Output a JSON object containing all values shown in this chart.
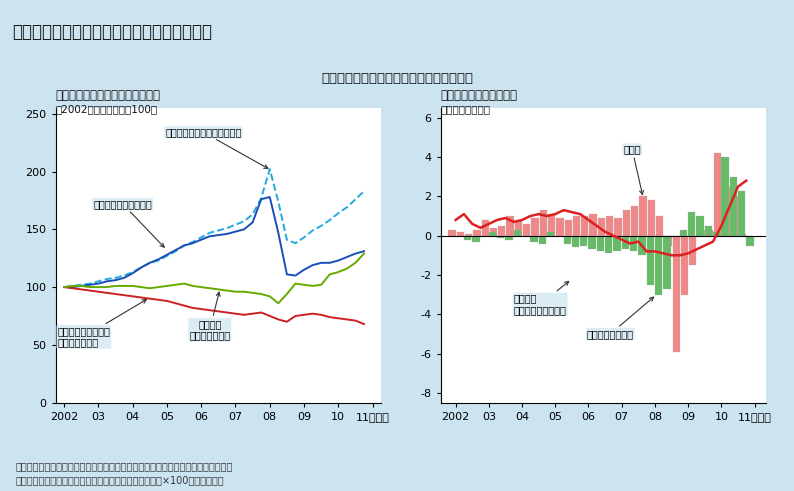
{
  "title_box": "第１－１－３図　交易条件の悪化と交易損失",
  "subtitle": "交易条件の悪化が貿易による所得増を減殺",
  "bg_color": "#cce4f0",
  "plot_bg": "#ffffff",
  "chart1_title": "（１）輸入物価と交易条件の動向",
  "chart1_ylabel": "（2002年第１四半期＝100）",
  "chart2_title": "（２）純輸出と交易損失",
  "chart2_ylabel": "（前年差、兆円）",
  "footer1": "（備考）　１．日本銀行「企業物価指数」、内閣府「国民経済計算」により作成。",
  "footer2": "　　　　　２．交易条件＝輸出物価指数／輸入物価指数×100として算出。",
  "c1_xtick_pos": [
    2002.25,
    2003.25,
    2004.25,
    2005.25,
    2006.25,
    2007.25,
    2008.25,
    2009.25,
    2010.25,
    2011.25
  ],
  "c1_xtick_lab": [
    "2002",
    "03",
    "04",
    "05",
    "06",
    "07",
    "08",
    "09",
    "10",
    "11（年）"
  ],
  "c1_yticks": [
    0,
    50,
    100,
    150,
    200,
    250
  ],
  "c1_ylim": [
    0,
    255
  ],
  "c1_xlim": [
    2002.0,
    2011.5
  ],
  "c2_xtick_pos": [
    2002.25,
    2003.25,
    2004.25,
    2005.25,
    2006.25,
    2007.25,
    2008.25,
    2009.25,
    2010.25,
    2011.25
  ],
  "c2_xtick_lab": [
    "2002",
    "03",
    "04",
    "05",
    "06",
    "07",
    "08",
    "09",
    "10",
    "11（年）"
  ],
  "c2_yticks": [
    -8,
    -6,
    -4,
    -2,
    0,
    2,
    4,
    6
  ],
  "c2_ylim": [
    -8.5,
    6.5
  ],
  "c2_xlim": [
    2001.8,
    2011.6
  ],
  "import_contract_color": "#22aadd",
  "import_yen_color": "#1a4eb8",
  "exchange_color": "#cc2020",
  "terms_color": "#66aa00",
  "net_export_color": "#f08888",
  "trade_adj_color": "#66bb66",
  "trade_gain_color": "#dd2020",
  "import_contract_x": [
    2002.25,
    2002.5,
    2002.75,
    2003.0,
    2003.25,
    2003.5,
    2003.75,
    2004.0,
    2004.25,
    2004.5,
    2004.75,
    2005.0,
    2005.25,
    2005.5,
    2005.75,
    2006.0,
    2006.25,
    2006.5,
    2006.75,
    2007.0,
    2007.25,
    2007.5,
    2007.75,
    2008.0,
    2008.25,
    2008.5,
    2008.75,
    2009.0,
    2009.25,
    2009.5,
    2009.75,
    2010.0,
    2010.25,
    2010.5,
    2010.75,
    2011.0
  ],
  "import_contract_y": [
    100,
    101,
    102,
    103,
    105,
    107,
    108,
    110,
    113,
    117,
    121,
    123,
    127,
    131,
    136,
    139,
    143,
    147,
    149,
    151,
    154,
    157,
    163,
    177,
    202,
    174,
    141,
    138,
    143,
    149,
    153,
    158,
    164,
    169,
    176,
    183
  ],
  "import_yen_x": [
    2002.25,
    2002.5,
    2002.75,
    2003.0,
    2003.25,
    2003.5,
    2003.75,
    2004.0,
    2004.25,
    2004.5,
    2004.75,
    2005.0,
    2005.25,
    2005.5,
    2005.75,
    2006.0,
    2006.25,
    2006.5,
    2006.75,
    2007.0,
    2007.25,
    2007.5,
    2007.75,
    2008.0,
    2008.25,
    2008.5,
    2008.75,
    2009.0,
    2009.25,
    2009.5,
    2009.75,
    2010.0,
    2010.25,
    2010.5,
    2010.75,
    2011.0
  ],
  "import_yen_y": [
    100,
    100,
    101,
    102,
    103,
    105,
    106,
    108,
    112,
    117,
    121,
    124,
    128,
    132,
    136,
    138,
    141,
    144,
    145,
    146,
    148,
    150,
    156,
    176,
    178,
    147,
    111,
    110,
    115,
    119,
    121,
    121,
    123,
    126,
    129,
    131
  ],
  "exchange_x": [
    2002.25,
    2002.5,
    2002.75,
    2003.0,
    2003.25,
    2003.5,
    2003.75,
    2004.0,
    2004.25,
    2004.5,
    2004.75,
    2005.0,
    2005.25,
    2005.5,
    2005.75,
    2006.0,
    2006.25,
    2006.5,
    2006.75,
    2007.0,
    2007.25,
    2007.5,
    2007.75,
    2008.0,
    2008.25,
    2008.5,
    2008.75,
    2009.0,
    2009.25,
    2009.5,
    2009.75,
    2010.0,
    2010.25,
    2010.5,
    2010.75,
    2011.0
  ],
  "exchange_y": [
    100,
    99,
    98,
    97,
    96,
    95,
    94,
    93,
    92,
    91,
    90,
    89,
    88,
    86,
    84,
    82,
    81,
    80,
    79,
    78,
    77,
    76,
    77,
    78,
    75,
    72,
    70,
    75,
    76,
    77,
    76,
    74,
    73,
    72,
    71,
    68
  ],
  "terms_x": [
    2002.25,
    2002.5,
    2002.75,
    2003.0,
    2003.25,
    2003.5,
    2003.75,
    2004.0,
    2004.25,
    2004.5,
    2004.75,
    2005.0,
    2005.25,
    2005.5,
    2005.75,
    2006.0,
    2006.25,
    2006.5,
    2006.75,
    2007.0,
    2007.25,
    2007.5,
    2007.75,
    2008.0,
    2008.25,
    2008.5,
    2008.75,
    2009.0,
    2009.25,
    2009.5,
    2009.75,
    2010.0,
    2010.25,
    2010.5,
    2010.75,
    2011.0
  ],
  "terms_y": [
    100,
    101,
    101,
    100,
    100,
    100,
    101,
    101,
    101,
    100,
    99,
    100,
    101,
    102,
    103,
    101,
    100,
    99,
    98,
    97,
    96,
    96,
    95,
    94,
    92,
    86,
    94,
    103,
    102,
    101,
    102,
    111,
    113,
    116,
    121,
    129
  ],
  "quarters": [
    2002.25,
    2002.5,
    2002.75,
    2003.0,
    2003.25,
    2003.5,
    2003.75,
    2004.0,
    2004.25,
    2004.5,
    2004.75,
    2005.0,
    2005.25,
    2005.5,
    2005.75,
    2006.0,
    2006.25,
    2006.5,
    2006.75,
    2007.0,
    2007.25,
    2007.5,
    2007.75,
    2008.0,
    2008.25,
    2008.5,
    2008.75,
    2009.0,
    2009.25,
    2009.5,
    2009.75,
    2010.0,
    2010.25,
    2010.5,
    2010.75,
    2011.0
  ],
  "net_export_vals": [
    0.3,
    0.2,
    0.1,
    0.3,
    0.8,
    0.4,
    0.5,
    1.0,
    0.8,
    0.6,
    0.9,
    1.3,
    1.1,
    0.9,
    0.8,
    1.0,
    1.0,
    1.1,
    0.9,
    1.0,
    0.9,
    1.3,
    1.5,
    2.0,
    1.8,
    1.0,
    -0.5,
    -5.9,
    -3.0,
    -1.5,
    0.3,
    0.3,
    4.2,
    2.5,
    2.0,
    0.1
  ],
  "trade_adj_vals": [
    0.0,
    -0.2,
    -0.3,
    0.0,
    0.2,
    -0.1,
    -0.2,
    0.3,
    0.0,
    -0.3,
    -0.4,
    0.2,
    0.0,
    -0.4,
    -0.6,
    -0.5,
    -0.7,
    -0.8,
    -0.9,
    -0.8,
    -0.7,
    -0.8,
    -1.0,
    -2.5,
    -3.0,
    -2.7,
    0.0,
    0.3,
    1.2,
    1.0,
    0.5,
    0.2,
    4.0,
    3.0,
    2.3,
    -0.5
  ],
  "trade_gain_vals": [
    0.8,
    1.1,
    0.6,
    0.4,
    0.6,
    0.8,
    0.9,
    0.7,
    0.8,
    1.0,
    1.1,
    1.0,
    1.1,
    1.3,
    1.2,
    1.1,
    0.8,
    0.5,
    0.2,
    0.0,
    -0.2,
    -0.4,
    -0.3,
    -0.8,
    -0.8,
    -0.9,
    -1.0,
    -1.0,
    -0.9,
    -0.7,
    -0.5,
    -0.3,
    0.5,
    1.5,
    2.5,
    2.8
  ]
}
